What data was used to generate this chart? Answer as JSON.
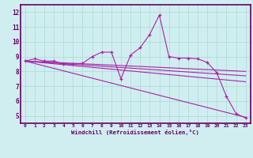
{
  "xlabel": "Windchill (Refroidissement éolien,°C)",
  "xlim": [
    -0.5,
    23.5
  ],
  "ylim": [
    4.5,
    12.5
  ],
  "xticks": [
    0,
    1,
    2,
    3,
    4,
    5,
    6,
    7,
    8,
    9,
    10,
    11,
    12,
    13,
    14,
    15,
    16,
    17,
    18,
    19,
    20,
    21,
    22,
    23
  ],
  "yticks": [
    5,
    6,
    7,
    8,
    9,
    10,
    11,
    12
  ],
  "bg_color": "#d0eef0",
  "line_color": "#aa22aa",
  "spine_color": "#660066",
  "grid_color": "#b0ddd8",
  "series": [
    {
      "x": [
        0,
        1,
        2,
        3,
        4,
        5,
        6,
        7,
        8,
        9,
        10,
        11,
        12,
        13,
        14,
        15,
        16,
        17,
        18,
        19,
        20,
        21,
        22,
        23
      ],
      "y": [
        8.7,
        8.85,
        8.7,
        8.7,
        8.5,
        8.5,
        8.55,
        9.0,
        9.3,
        9.3,
        7.5,
        9.1,
        9.6,
        10.5,
        11.8,
        9.0,
        8.9,
        8.9,
        8.85,
        8.6,
        7.9,
        6.3,
        5.15,
        4.85
      ],
      "marker": "+"
    },
    {
      "x": [
        0,
        23
      ],
      "y": [
        8.7,
        8.0
      ],
      "marker": null
    },
    {
      "x": [
        0,
        23
      ],
      "y": [
        8.7,
        7.7
      ],
      "marker": null
    },
    {
      "x": [
        0,
        23
      ],
      "y": [
        8.7,
        7.3
      ],
      "marker": null
    },
    {
      "x": [
        0,
        23
      ],
      "y": [
        8.7,
        4.9
      ],
      "marker": null
    }
  ]
}
